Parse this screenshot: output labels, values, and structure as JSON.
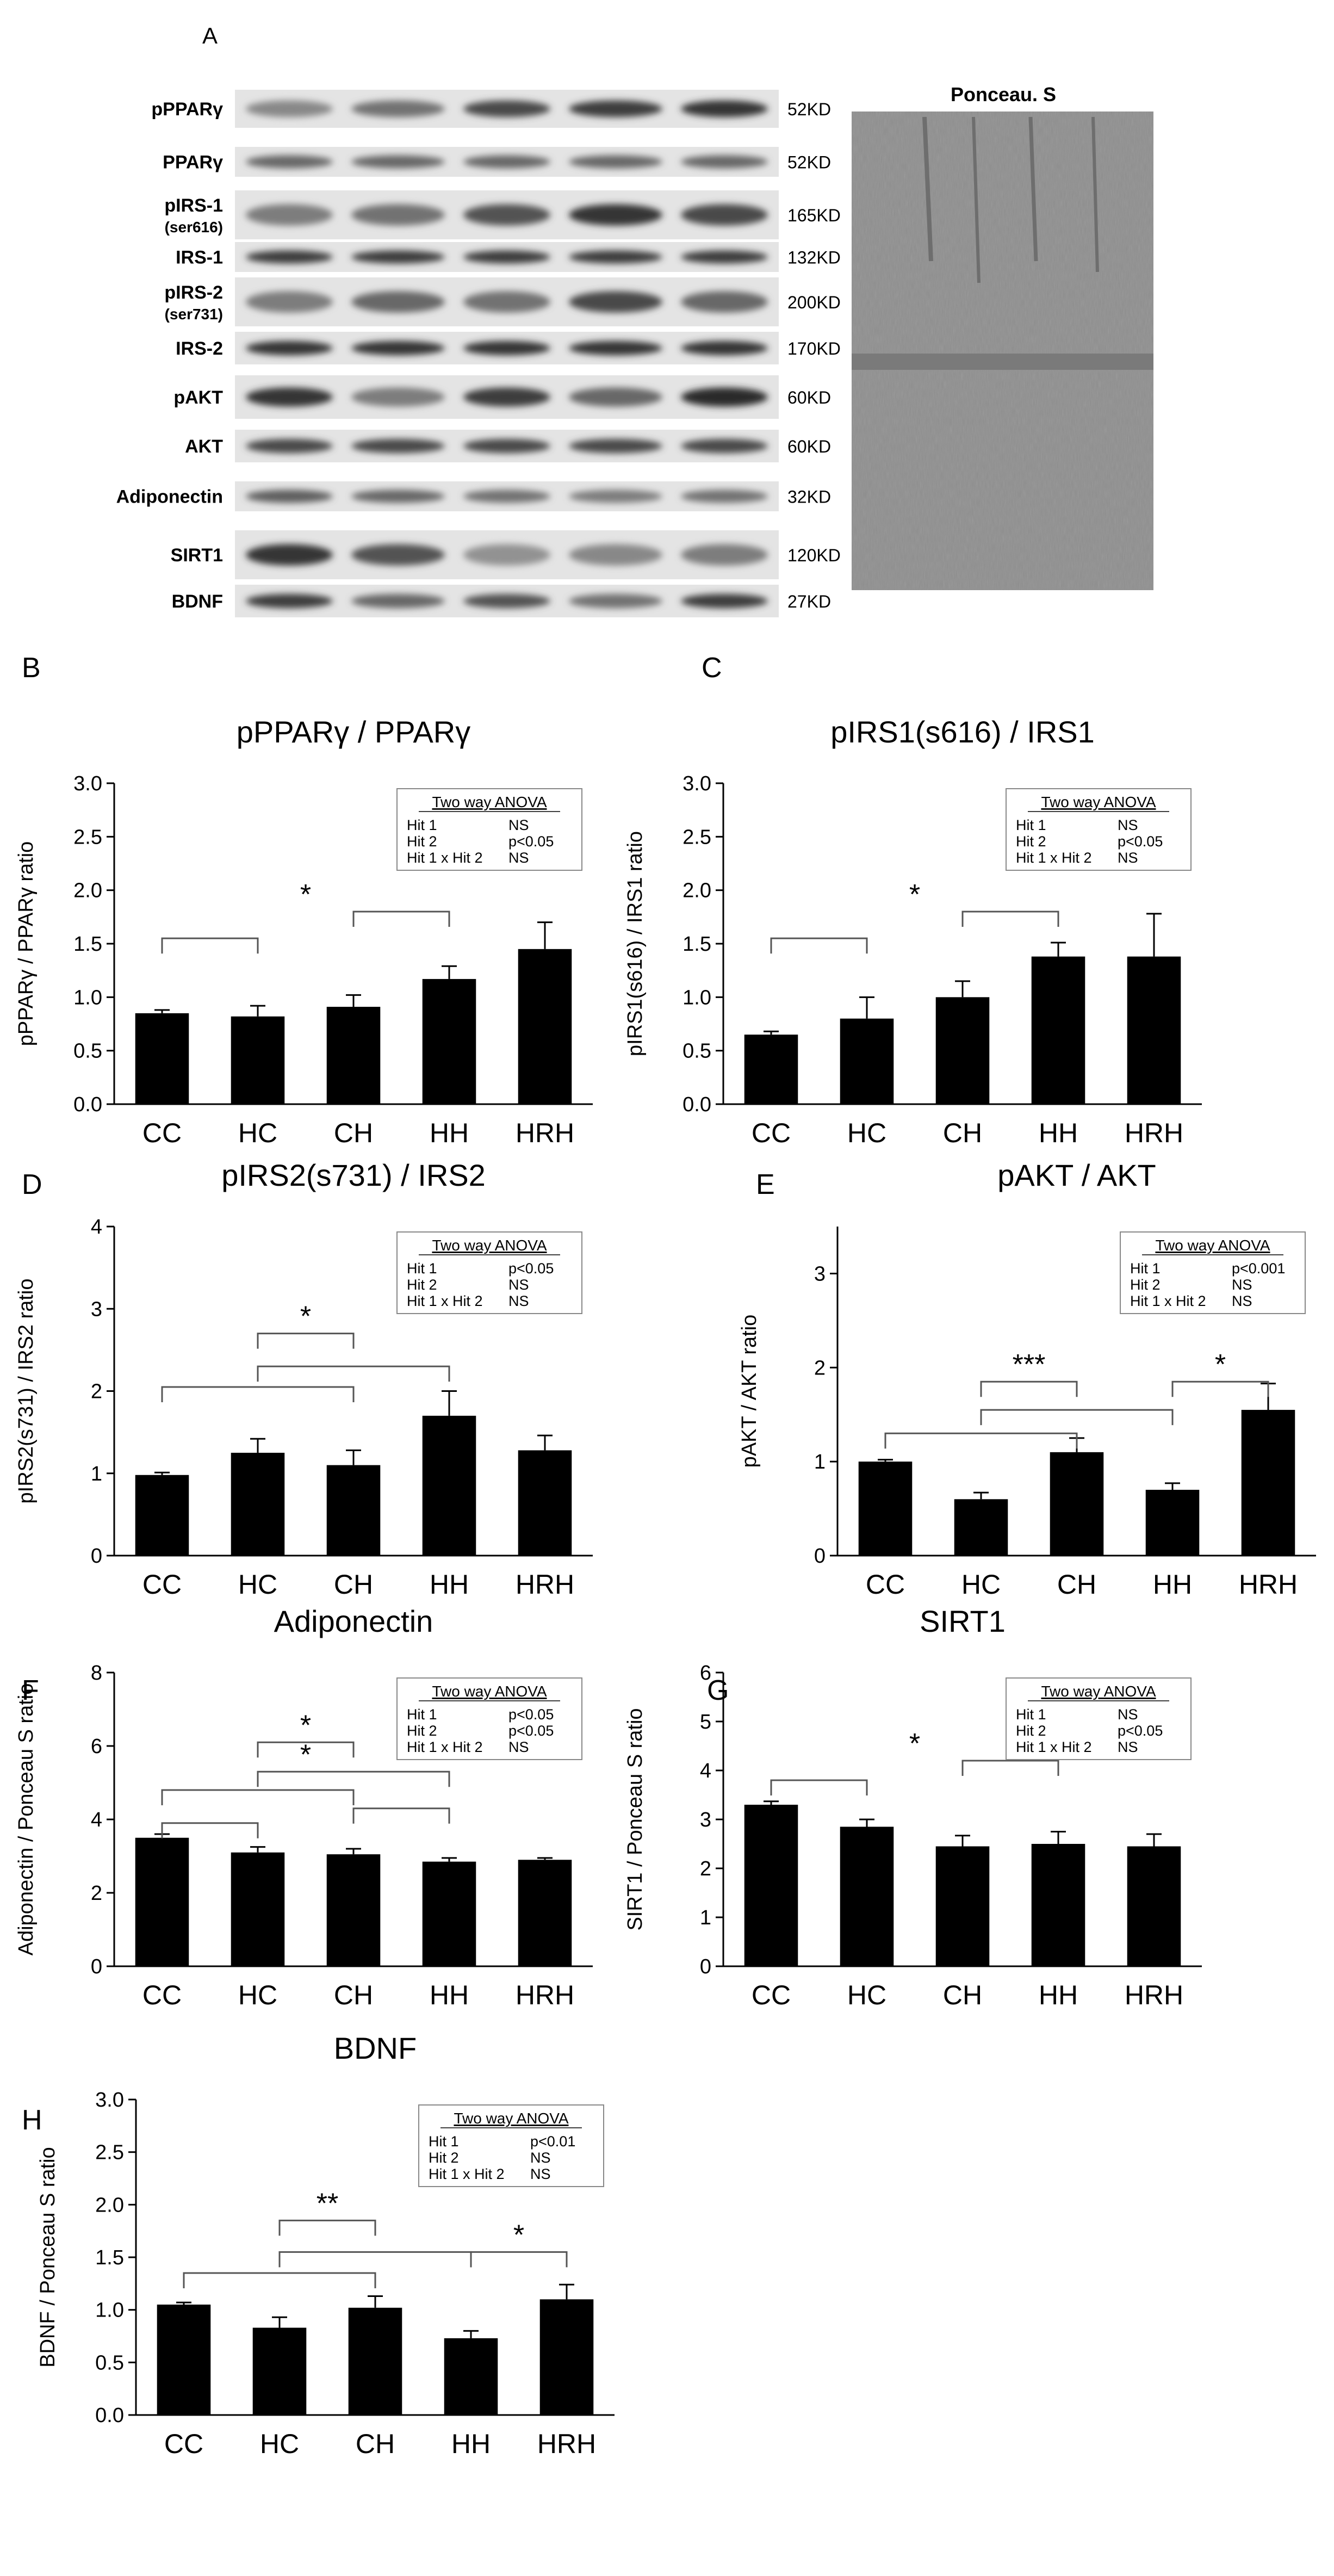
{
  "blot": {
    "panel_letter": "A",
    "ponceau_title": "Ponceau. S",
    "rows": [
      {
        "label": "pPPARγ",
        "sub": "",
        "kd": "52KD",
        "intensity": [
          0.45,
          0.55,
          0.75,
          0.8,
          0.85
        ]
      },
      {
        "label": "PPARγ",
        "sub": "",
        "kd": "52KD",
        "intensity": [
          0.6,
          0.6,
          0.6,
          0.6,
          0.6
        ]
      },
      {
        "label": "pIRS-1",
        "sub": "(ser616)",
        "kd": "165KD",
        "intensity": [
          0.5,
          0.55,
          0.7,
          0.85,
          0.75
        ]
      },
      {
        "label": "IRS-1",
        "sub": "",
        "kd": "132KD",
        "intensity": [
          0.8,
          0.8,
          0.8,
          0.8,
          0.8
        ]
      },
      {
        "label": "pIRS-2",
        "sub": "(ser731)",
        "kd": "200KD",
        "intensity": [
          0.5,
          0.6,
          0.55,
          0.75,
          0.6
        ]
      },
      {
        "label": "IRS-2",
        "sub": "",
        "kd": "170KD",
        "intensity": [
          0.85,
          0.85,
          0.85,
          0.85,
          0.85
        ]
      },
      {
        "label": "pAKT",
        "sub": "",
        "kd": "60KD",
        "intensity": [
          0.85,
          0.5,
          0.8,
          0.6,
          0.9
        ]
      },
      {
        "label": "AKT",
        "sub": "",
        "kd": "60KD",
        "intensity": [
          0.75,
          0.75,
          0.75,
          0.75,
          0.75
        ]
      },
      {
        "label": "Adiponectin",
        "sub": "",
        "kd": "32KD",
        "intensity": [
          0.65,
          0.6,
          0.55,
          0.5,
          0.55
        ]
      },
      {
        "label": "SIRT1",
        "sub": "",
        "kd": "120KD",
        "intensity": [
          0.85,
          0.7,
          0.4,
          0.45,
          0.5
        ]
      },
      {
        "label": "BDNF",
        "sub": "",
        "kd": "27KD",
        "intensity": [
          0.8,
          0.6,
          0.7,
          0.55,
          0.8
        ]
      }
    ]
  },
  "chart_data": [
    {
      "panel": "B",
      "type": "bar",
      "title": "pPPARγ / PPARγ",
      "ylabel": "pPPARγ / PPARγ ratio",
      "categories": [
        "CC",
        "HC",
        "CH",
        "HH",
        "HRH"
      ],
      "values": [
        0.85,
        0.82,
        0.91,
        1.17,
        1.45
      ],
      "errors": [
        0.03,
        0.1,
        0.11,
        0.12,
        0.25
      ],
      "ylim": [
        0,
        3.0
      ],
      "ticks": [
        "0.0",
        "0.5",
        "1.0",
        "1.5",
        "2.0",
        "2.5",
        "3.0"
      ],
      "anova": {
        "header": "Two way ANOVA",
        "rows": [
          [
            "Hit 1",
            "NS"
          ],
          [
            "Hit 2",
            "p<0.05"
          ],
          [
            "Hit 1 x Hit 2",
            "NS"
          ]
        ]
      },
      "brackets": [
        {
          "groups": [
            [
              0,
              1
            ],
            [
              2,
              3
            ]
          ],
          "levels": [
            1.55,
            1.8
          ],
          "star": "*"
        }
      ]
    },
    {
      "panel": "C",
      "type": "bar",
      "title": "pIRS1(s616) / IRS1",
      "ylabel": "pIRS1(s616) / IRS1 ratio",
      "categories": [
        "CC",
        "HC",
        "CH",
        "HH",
        "HRH"
      ],
      "values": [
        0.65,
        0.8,
        1.0,
        1.38,
        1.38
      ],
      "errors": [
        0.03,
        0.2,
        0.15,
        0.13,
        0.4
      ],
      "ylim": [
        0,
        3.0
      ],
      "ticks": [
        "0.0",
        "0.5",
        "1.0",
        "1.5",
        "2.0",
        "2.5",
        "3.0"
      ],
      "anova": {
        "header": "Two way ANOVA",
        "rows": [
          [
            "Hit 1",
            "NS"
          ],
          [
            "Hit 2",
            "p<0.05"
          ],
          [
            "Hit 1 x Hit 2",
            "NS"
          ]
        ]
      },
      "brackets": [
        {
          "groups": [
            [
              0,
              1
            ],
            [
              2,
              3
            ]
          ],
          "levels": [
            1.55,
            1.8
          ],
          "star": "*"
        }
      ]
    },
    {
      "panel": "D",
      "type": "bar",
      "title": "pIRS2(s731) / IRS2",
      "ylabel": "pIRS2(s731) / IRS2 ratio",
      "categories": [
        "CC",
        "HC",
        "CH",
        "HH",
        "HRH"
      ],
      "values": [
        0.98,
        1.25,
        1.1,
        1.7,
        1.28
      ],
      "errors": [
        0.03,
        0.17,
        0.18,
        0.3,
        0.18
      ],
      "ylim": [
        0,
        4
      ],
      "ticks": [
        "0",
        "1",
        "2",
        "3",
        "4"
      ],
      "anova": {
        "header": "Two way ANOVA",
        "rows": [
          [
            "Hit 1",
            "p<0.05"
          ],
          [
            "Hit 2",
            "NS"
          ],
          [
            "Hit 1 x Hit 2",
            "NS"
          ]
        ]
      },
      "brackets": [
        {
          "groups": [
            [
              0,
              2
            ],
            [
              1,
              3
            ]
          ],
          "levels": [
            2.05,
            2.3
          ],
          "star": ""
        },
        {
          "groups": [
            [
              1,
              2
            ]
          ],
          "levels": [
            2.7
          ],
          "star": "*"
        }
      ]
    },
    {
      "panel": "E",
      "type": "bar",
      "title": "pAKT / AKT",
      "ylabel": "pAKT / AKT ratio",
      "categories": [
        "CC",
        "HC",
        "CH",
        "HH",
        "HRH"
      ],
      "values": [
        1.0,
        0.6,
        1.1,
        0.7,
        1.55
      ],
      "errors": [
        0.02,
        0.07,
        0.15,
        0.07,
        0.28
      ],
      "ylim": [
        0,
        3.5
      ],
      "ticks": [
        "0",
        "1",
        "2",
        "3"
      ],
      "anova": {
        "header": "Two way ANOVA",
        "rows": [
          [
            "Hit 1",
            "p<0.001"
          ],
          [
            "Hit 2",
            "NS"
          ],
          [
            "Hit 1 x Hit 2",
            "NS"
          ]
        ]
      },
      "brackets": [
        {
          "groups": [
            [
              0,
              2
            ],
            [
              1,
              3
            ]
          ],
          "levels": [
            1.3,
            1.55
          ],
          "star": ""
        },
        {
          "groups": [
            [
              1,
              2
            ]
          ],
          "levels": [
            1.85
          ],
          "star": "***"
        },
        {
          "groups": [
            [
              3,
              4
            ]
          ],
          "levels": [
            1.85
          ],
          "star": "*"
        }
      ]
    },
    {
      "panel": "F",
      "type": "bar",
      "title": "Adiponectin",
      "ylabel": "Adiponectin / Ponceau S ratio",
      "categories": [
        "CC",
        "HC",
        "CH",
        "HH",
        "HRH"
      ],
      "values": [
        3.5,
        3.1,
        3.05,
        2.85,
        2.9
      ],
      "errors": [
        0.1,
        0.15,
        0.15,
        0.1,
        0.05
      ],
      "ylim": [
        0,
        8
      ],
      "ticks": [
        "0",
        "2",
        "4",
        "6",
        "8"
      ],
      "anova": {
        "header": "Two way ANOVA",
        "rows": [
          [
            "Hit 1",
            "p<0.05"
          ],
          [
            "Hit 2",
            "p<0.05"
          ],
          [
            "Hit 1 x Hit 2",
            "NS"
          ]
        ]
      },
      "brackets": [
        {
          "groups": [
            [
              0,
              1
            ],
            [
              2,
              3
            ]
          ],
          "levels": [
            3.9,
            4.3
          ],
          "star": ""
        },
        {
          "groups": [
            [
              0,
              2
            ],
            [
              1,
              3
            ]
          ],
          "levels": [
            4.8,
            5.3
          ],
          "star": "*"
        },
        {
          "groups": [
            [
              1,
              2
            ]
          ],
          "levels": [
            6.1
          ],
          "star": "*"
        }
      ]
    },
    {
      "panel": "G",
      "type": "bar",
      "title": "SIRT1",
      "ylabel": "SIRT1 / Ponceau S ratio",
      "categories": [
        "CC",
        "HC",
        "CH",
        "HH",
        "HRH"
      ],
      "values": [
        3.3,
        2.85,
        2.45,
        2.5,
        2.45
      ],
      "errors": [
        0.07,
        0.15,
        0.22,
        0.25,
        0.25
      ],
      "ylim": [
        0,
        6
      ],
      "ticks": [
        "0",
        "1",
        "2",
        "3",
        "4",
        "5",
        "6"
      ],
      "anova": {
        "header": "Two way ANOVA",
        "rows": [
          [
            "Hit 1",
            "NS"
          ],
          [
            "Hit 2",
            "p<0.05"
          ],
          [
            "Hit 1 x Hit 2",
            "NS"
          ]
        ]
      },
      "brackets": [
        {
          "groups": [
            [
              0,
              1
            ],
            [
              2,
              3
            ]
          ],
          "levels": [
            3.8,
            4.2
          ],
          "star": "*"
        }
      ]
    },
    {
      "panel": "H",
      "type": "bar",
      "title": "BDNF",
      "ylabel": "BDNF / Ponceau S ratio",
      "categories": [
        "CC",
        "HC",
        "CH",
        "HH",
        "HRH"
      ],
      "values": [
        1.05,
        0.83,
        1.02,
        0.73,
        1.1
      ],
      "errors": [
        0.02,
        0.1,
        0.11,
        0.07,
        0.14
      ],
      "ylim": [
        0,
        3.0
      ],
      "ticks": [
        "0.0",
        "0.5",
        "1.0",
        "1.5",
        "2.0",
        "2.5",
        "3.0"
      ],
      "anova": {
        "header": "Two way ANOVA",
        "rows": [
          [
            "Hit 1",
            "p<0.01"
          ],
          [
            "Hit 2",
            "NS"
          ],
          [
            "Hit 1 x Hit 2",
            "NS"
          ]
        ]
      },
      "brackets": [
        {
          "groups": [
            [
              0,
              2
            ],
            [
              1,
              3
            ]
          ],
          "levels": [
            1.35,
            1.55
          ],
          "star": ""
        },
        {
          "groups": [
            [
              1,
              2
            ]
          ],
          "levels": [
            1.85
          ],
          "star": "**"
        },
        {
          "groups": [
            [
              3,
              4
            ]
          ],
          "levels": [
            1.55
          ],
          "star": "*"
        }
      ]
    }
  ]
}
